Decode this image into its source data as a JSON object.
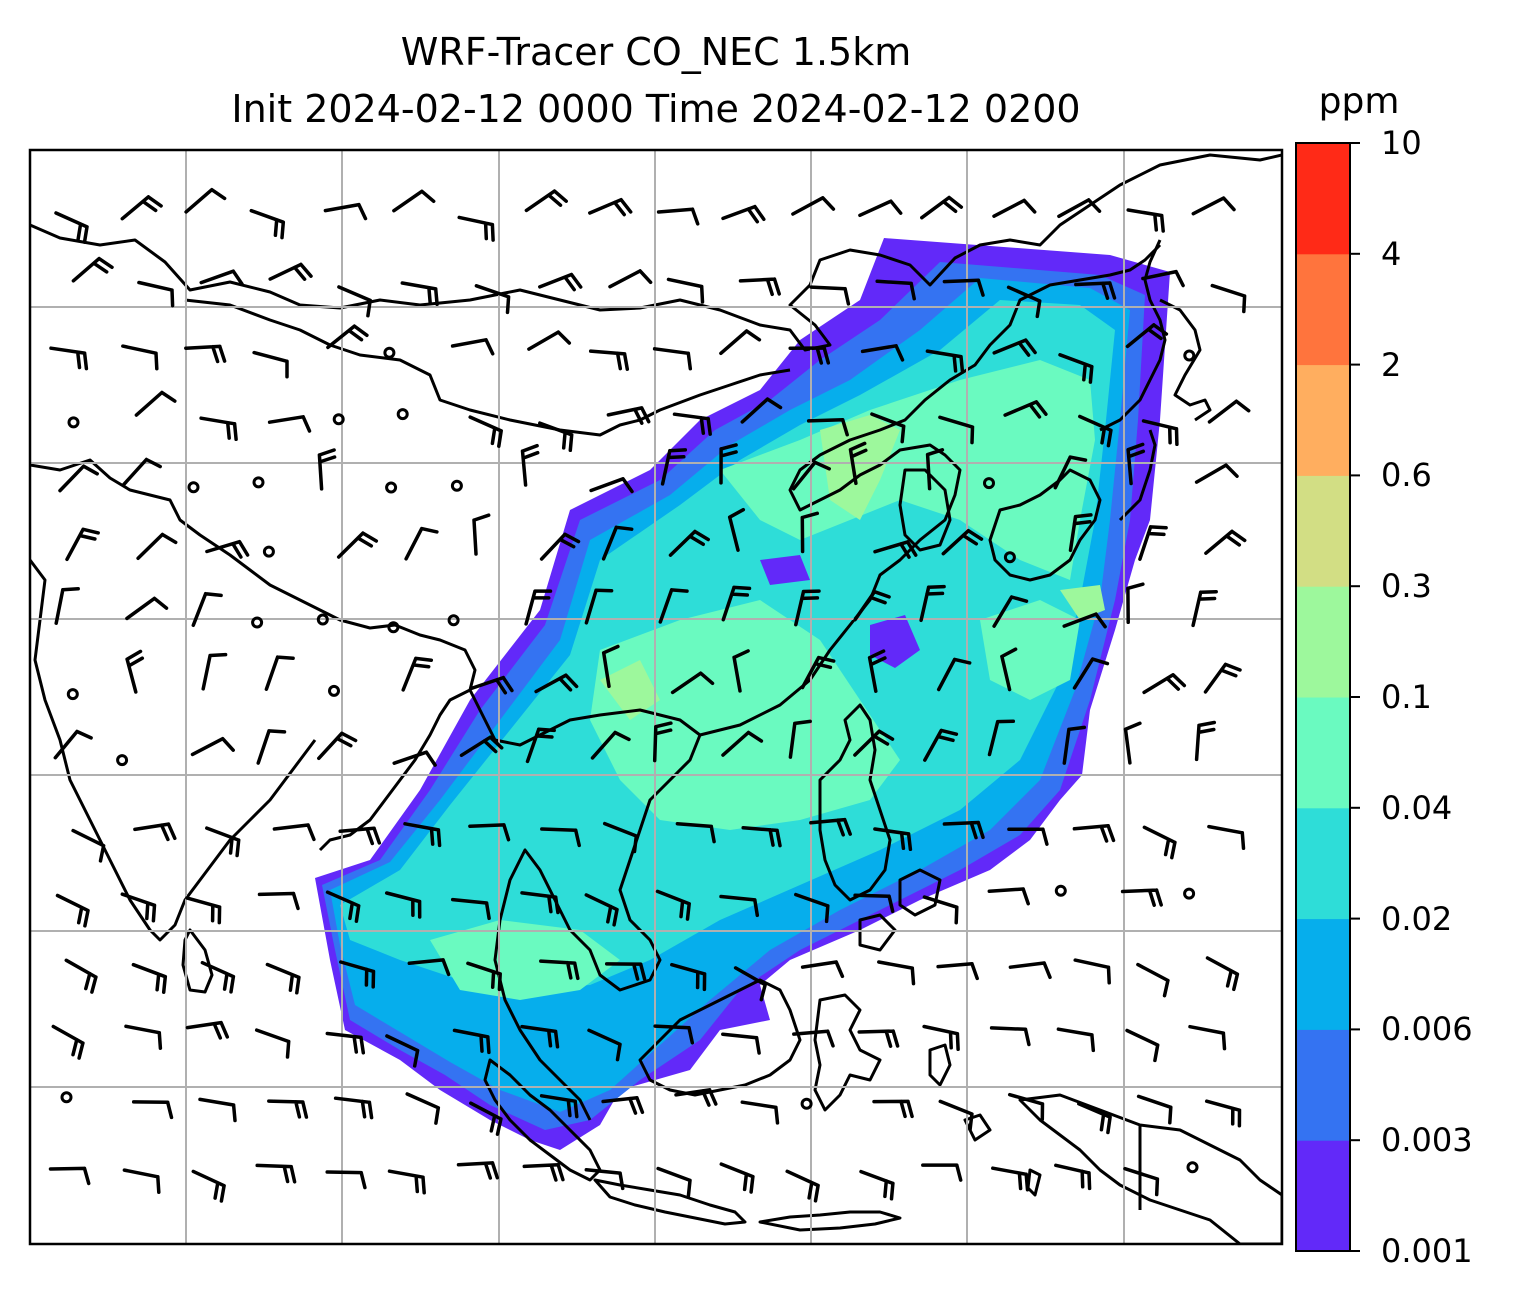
{
  "title": {
    "line1": "WRF-Tracer CO_NEC 1.5km",
    "line2": "Init 2024-02-12 0000 Time 2024-02-12 0200"
  },
  "colorbar": {
    "unit": "ppm",
    "levels": [
      "0.001",
      "0.003",
      "0.006",
      "0.02",
      "0.04",
      "0.1",
      "0.3",
      "0.6",
      "2",
      "4",
      "10"
    ],
    "colors": [
      "#6229F9",
      "#3473F2",
      "#06AEEC",
      "#2EDDD8",
      "#6AFAC0",
      "#9DF89C",
      "#D2DE84",
      "#FFAE5F",
      "#FF743D",
      "#FF2A17"
    ]
  },
  "map": {
    "variable": "CO_NEC tracer",
    "unit": "ppm",
    "level": "1.5km",
    "overlay": "wind barbs",
    "coastlines": true,
    "gridlines": true
  }
}
